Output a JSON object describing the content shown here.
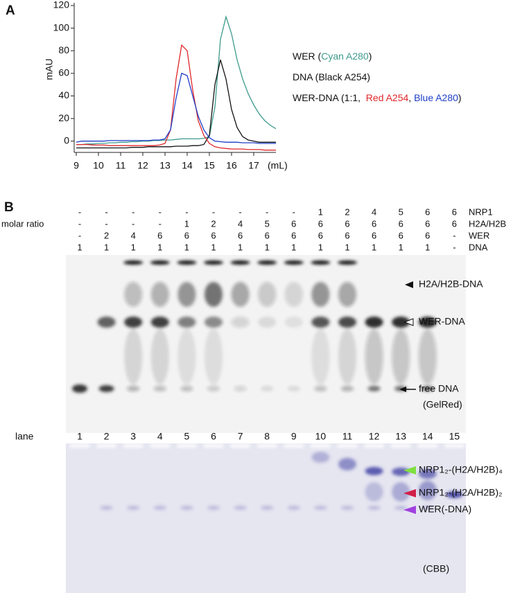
{
  "panel_a": {
    "label": "A"
  },
  "chart_data": {
    "type": "line",
    "y_label": "mAU",
    "x_label": "(mL)",
    "x": [
      9,
      9.25,
      9.5,
      9.75,
      10,
      10.25,
      10.5,
      10.75,
      11,
      11.25,
      11.5,
      11.75,
      12,
      12.25,
      12.5,
      12.75,
      13,
      13.25,
      13.5,
      13.75,
      14,
      14.25,
      14.5,
      14.75,
      15,
      15.25,
      15.5,
      15.75,
      16,
      16.25,
      16.5,
      16.75,
      17,
      17.25,
      17.5,
      17.75,
      18
    ],
    "series": [
      {
        "name": "Cyan A280",
        "color": "#3e9a8c",
        "values": [
          -3,
          -3,
          -2.5,
          -2.5,
          -2,
          -2,
          -1.5,
          -1.5,
          -1,
          -1,
          -0.5,
          -0.5,
          0,
          0,
          0.5,
          0.5,
          1,
          1,
          1.5,
          2,
          2,
          2,
          2,
          2.5,
          4,
          30,
          90,
          110,
          95,
          72,
          55,
          42,
          32,
          24,
          18,
          14,
          11
        ]
      },
      {
        "name": "Black A254",
        "color": "#111111",
        "values": [
          -6,
          -6,
          -6,
          -6,
          -6,
          -6,
          -6,
          -6,
          -6,
          -6,
          -5.5,
          -5.5,
          -5.5,
          -5,
          -5,
          -5,
          -5,
          -5,
          -4.5,
          -4.5,
          -4.5,
          -4,
          -4,
          -3,
          5,
          50,
          72,
          55,
          28,
          12,
          4,
          1,
          0,
          -1,
          -1,
          -1,
          -1
        ]
      },
      {
        "name": "Red A254",
        "color": "#e0262a",
        "values": [
          -3,
          -3,
          -3,
          -3.5,
          -3.5,
          -3.5,
          -4,
          -4,
          -4,
          -4,
          -4,
          -4,
          -4,
          -4,
          -4,
          -3.5,
          -2,
          10,
          55,
          85,
          80,
          45,
          18,
          5,
          -2,
          -5,
          -6,
          -6.5,
          -7,
          -7,
          -7,
          -7.5,
          -7.5,
          -7.5,
          -8,
          -8,
          -8
        ]
      },
      {
        "name": "Blue A280",
        "color": "#1f3fc8",
        "values": [
          -1,
          0,
          0,
          0,
          0,
          0,
          0.5,
          0.5,
          0.5,
          0.5,
          0.5,
          0.5,
          0.5,
          0.5,
          1,
          1,
          2,
          10,
          38,
          60,
          58,
          40,
          22,
          10,
          3,
          0,
          -0.5,
          -1,
          -1,
          -1,
          -1.5,
          -1.5,
          -1.5,
          -2,
          -2,
          -2,
          -2
        ]
      }
    ],
    "legend_text": [
      "WER (",
      ")",
      "DNA (",
      ")",
      "WER-DNA (1:1,  ",
      ", ",
      ")"
    ],
    "xlim": [
      9,
      18
    ],
    "xticks": [
      9,
      10,
      11,
      12,
      13,
      14,
      15,
      16,
      17
    ],
    "ylim": [
      -10,
      120
    ],
    "yticks": [
      0,
      20,
      40,
      60,
      80,
      100,
      120
    ],
    "grid": false
  },
  "panel_b": {
    "label": "B",
    "row_header": "molar ratio",
    "rows": [
      {
        "name": "NRP1",
        "values": [
          "-",
          "-",
          "-",
          "-",
          "-",
          "-",
          "-",
          "-",
          "-",
          1,
          2,
          4,
          5,
          6,
          6
        ]
      },
      {
        "name": "H2A/H2B",
        "values": [
          "-",
          "-",
          "-",
          "-",
          1,
          2,
          4,
          5,
          6,
          6,
          6,
          6,
          6,
          6,
          6
        ]
      },
      {
        "name": "WER",
        "values": [
          "-",
          2,
          4,
          6,
          6,
          6,
          6,
          6,
          6,
          6,
          6,
          6,
          6,
          6,
          "-"
        ]
      },
      {
        "name": "DNA",
        "values": [
          1,
          1,
          1,
          1,
          1,
          1,
          1,
          1,
          1,
          1,
          1,
          1,
          1,
          1,
          "-"
        ]
      }
    ],
    "lane_header": "lane",
    "lanes": [
      1,
      2,
      3,
      4,
      5,
      6,
      7,
      8,
      9,
      10,
      11,
      12,
      13,
      14,
      15
    ],
    "gelred_labels": [
      "H2A/H2B-DNA",
      "WER-DNA",
      "free DNA"
    ],
    "gelred_stain": "(GelRed)",
    "cbb_labels": [
      "NRP1₂-(H2A/H2B)₄",
      "NRP1₂-(H2A/H2B)₂",
      "WER(-DNA)"
    ],
    "cbb_stain": "(CBB)"
  }
}
